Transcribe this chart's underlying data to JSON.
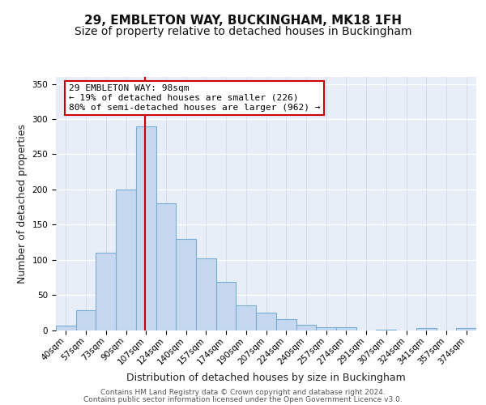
{
  "title_line1": "29, EMBLETON WAY, BUCKINGHAM, MK18 1FH",
  "title_line2": "Size of property relative to detached houses in Buckingham",
  "xlabel": "Distribution of detached houses by size in Buckingham",
  "ylabel": "Number of detached properties",
  "categories": [
    "40sqm",
    "57sqm",
    "73sqm",
    "90sqm",
    "107sqm",
    "124sqm",
    "140sqm",
    "157sqm",
    "174sqm",
    "190sqm",
    "207sqm",
    "224sqm",
    "240sqm",
    "257sqm",
    "274sqm",
    "291sqm",
    "307sqm",
    "324sqm",
    "341sqm",
    "357sqm",
    "374sqm"
  ],
  "values": [
    6,
    28,
    110,
    200,
    290,
    180,
    130,
    102,
    68,
    35,
    25,
    16,
    8,
    4,
    4,
    0,
    1,
    0,
    3,
    0,
    3
  ],
  "bar_color": "#c5d8f0",
  "bar_edge_color": "#7aadd4",
  "vline_color": "#cc0000",
  "annotation_text": "29 EMBLETON WAY: 98sqm\n← 19% of detached houses are smaller (226)\n80% of semi-detached houses are larger (962) →",
  "annotation_box_color": "#ffffff",
  "annotation_box_edge_color": "#cc0000",
  "ylim": [
    0,
    360
  ],
  "yticks": [
    0,
    50,
    100,
    150,
    200,
    250,
    300,
    350
  ],
  "footer_line1": "Contains HM Land Registry data © Crown copyright and database right 2024.",
  "footer_line2": "Contains public sector information licensed under the Open Government Licence v3.0.",
  "bg_color": "#e8eef8",
  "fig_bg_color": "#ffffff",
  "title_fontsize": 11,
  "subtitle_fontsize": 10,
  "axis_label_fontsize": 9,
  "tick_fontsize": 7.5,
  "annotation_fontsize": 8,
  "footer_fontsize": 6.5
}
